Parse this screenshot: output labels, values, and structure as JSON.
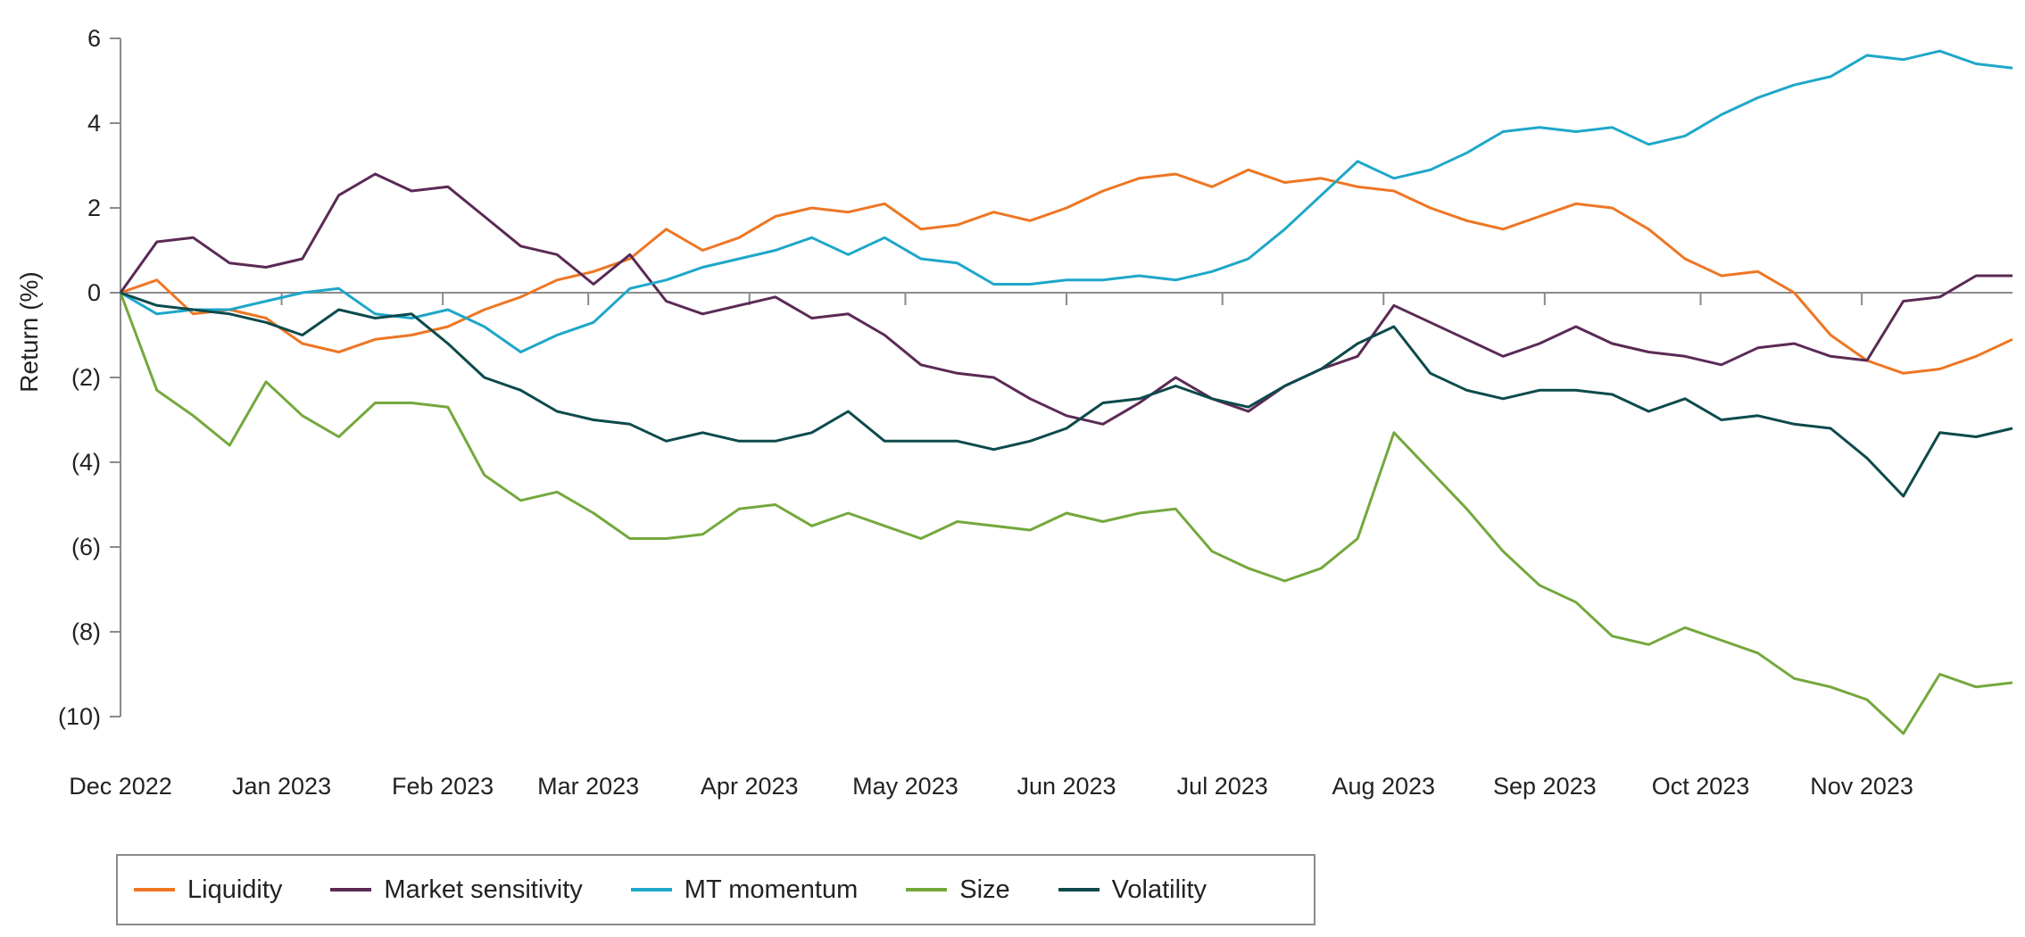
{
  "chart_data": {
    "type": "line",
    "title": "",
    "xlabel": "",
    "ylabel": "Return (%)",
    "ylim": [
      -10,
      6
    ],
    "yticks": [
      6,
      4,
      2,
      0,
      -2,
      -4,
      -6,
      -8,
      -10
    ],
    "ytick_labels": [
      "6",
      "4",
      "2",
      "0",
      "(2)",
      "(4)",
      "(6)",
      "(8)",
      "(10)"
    ],
    "x_range": [
      "2022-12-01",
      "2023-11-30"
    ],
    "x_tick_dates": [
      "2022-12-01",
      "2023-01-01",
      "2023-02-01",
      "2023-03-01",
      "2023-04-01",
      "2023-05-01",
      "2023-06-01",
      "2023-07-01",
      "2023-08-01",
      "2023-09-01",
      "2023-10-01",
      "2023-11-01"
    ],
    "x_tick_labels": [
      "Dec 2022",
      "Jan 2023",
      "Feb 2023",
      "Mar 2023",
      "Apr 2023",
      "May 2023",
      "Jun 2023",
      "Jul 2023",
      "Aug 2023",
      "Sep 2023",
      "Oct 2023",
      "Nov 2023"
    ],
    "grid": false,
    "legend_position": "bottom-left",
    "series": [
      {
        "name": "Liquidity",
        "color": "#ee7623",
        "x": [
          "2022-12-01",
          "2022-12-08",
          "2022-12-15",
          "2022-12-22",
          "2022-12-29",
          "2023-01-05",
          "2023-01-12",
          "2023-01-19",
          "2023-01-26",
          "2023-02-02",
          "2023-02-09",
          "2023-02-16",
          "2023-02-23",
          "2023-03-02",
          "2023-03-09",
          "2023-03-16",
          "2023-03-23",
          "2023-03-30",
          "2023-04-06",
          "2023-04-13",
          "2023-04-20",
          "2023-04-27",
          "2023-05-04",
          "2023-05-11",
          "2023-05-18",
          "2023-05-25",
          "2023-06-01",
          "2023-06-08",
          "2023-06-15",
          "2023-06-22",
          "2023-06-29",
          "2023-07-06",
          "2023-07-13",
          "2023-07-20",
          "2023-07-27",
          "2023-08-03",
          "2023-08-10",
          "2023-08-17",
          "2023-08-24",
          "2023-08-31",
          "2023-09-07",
          "2023-09-14",
          "2023-09-21",
          "2023-09-28",
          "2023-10-05",
          "2023-10-12",
          "2023-10-19",
          "2023-10-26",
          "2023-11-02",
          "2023-11-09",
          "2023-11-16",
          "2023-11-23",
          "2023-11-30"
        ],
        "values": [
          0,
          0.3,
          -0.5,
          -0.4,
          -0.6,
          -1.2,
          -1.4,
          -1.1,
          -1.0,
          -0.8,
          -0.4,
          -0.1,
          0.3,
          0.5,
          0.8,
          1.5,
          1.0,
          1.3,
          1.8,
          2.0,
          1.9,
          2.1,
          1.5,
          1.6,
          1.9,
          1.7,
          2.0,
          2.4,
          2.7,
          2.8,
          2.5,
          2.9,
          2.6,
          2.7,
          2.5,
          2.4,
          2.0,
          1.7,
          1.5,
          1.8,
          2.1,
          2.0,
          1.5,
          0.8,
          0.4,
          0.5,
          0.0,
          -1.0,
          -1.6,
          -1.9,
          -1.8,
          -1.5,
          -1.1
        ]
      },
      {
        "name": "Market sensitivity",
        "color": "#5b2a55",
        "x": [
          "2022-12-01",
          "2022-12-08",
          "2022-12-15",
          "2022-12-22",
          "2022-12-29",
          "2023-01-05",
          "2023-01-12",
          "2023-01-19",
          "2023-01-26",
          "2023-02-02",
          "2023-02-09",
          "2023-02-16",
          "2023-02-23",
          "2023-03-02",
          "2023-03-09",
          "2023-03-16",
          "2023-03-23",
          "2023-03-30",
          "2023-04-06",
          "2023-04-13",
          "2023-04-20",
          "2023-04-27",
          "2023-05-04",
          "2023-05-11",
          "2023-05-18",
          "2023-05-25",
          "2023-06-01",
          "2023-06-08",
          "2023-06-15",
          "2023-06-22",
          "2023-06-29",
          "2023-07-06",
          "2023-07-13",
          "2023-07-20",
          "2023-07-27",
          "2023-08-03",
          "2023-08-10",
          "2023-08-17",
          "2023-08-24",
          "2023-08-31",
          "2023-09-07",
          "2023-09-14",
          "2023-09-21",
          "2023-09-28",
          "2023-10-05",
          "2023-10-12",
          "2023-10-19",
          "2023-10-26",
          "2023-11-02",
          "2023-11-09",
          "2023-11-16",
          "2023-11-23",
          "2023-11-30"
        ],
        "values": [
          0,
          1.2,
          1.3,
          0.7,
          0.6,
          0.8,
          2.3,
          2.8,
          2.4,
          2.5,
          1.8,
          1.1,
          0.9,
          0.2,
          0.9,
          -0.2,
          -0.5,
          -0.3,
          -0.1,
          -0.6,
          -0.5,
          -1.0,
          -1.7,
          -1.9,
          -2.0,
          -2.5,
          -2.9,
          -3.1,
          -2.6,
          -2.0,
          -2.5,
          -2.8,
          -2.2,
          -1.8,
          -1.5,
          -0.3,
          -0.7,
          -1.1,
          -1.5,
          -1.2,
          -0.8,
          -1.2,
          -1.4,
          -1.5,
          -1.7,
          -1.3,
          -1.2,
          -1.5,
          -1.6,
          -0.2,
          -0.1,
          0.4,
          0.4
        ]
      },
      {
        "name": "MT momentum",
        "color": "#1ea7c9",
        "x": [
          "2022-12-01",
          "2022-12-08",
          "2022-12-15",
          "2022-12-22",
          "2022-12-29",
          "2023-01-05",
          "2023-01-12",
          "2023-01-19",
          "2023-01-26",
          "2023-02-02",
          "2023-02-09",
          "2023-02-16",
          "2023-02-23",
          "2023-03-02",
          "2023-03-09",
          "2023-03-16",
          "2023-03-23",
          "2023-03-30",
          "2023-04-06",
          "2023-04-13",
          "2023-04-20",
          "2023-04-27",
          "2023-05-04",
          "2023-05-11",
          "2023-05-18",
          "2023-05-25",
          "2023-06-01",
          "2023-06-08",
          "2023-06-15",
          "2023-06-22",
          "2023-06-29",
          "2023-07-06",
          "2023-07-13",
          "2023-07-20",
          "2023-07-27",
          "2023-08-03",
          "2023-08-10",
          "2023-08-17",
          "2023-08-24",
          "2023-08-31",
          "2023-09-07",
          "2023-09-14",
          "2023-09-21",
          "2023-09-28",
          "2023-10-05",
          "2023-10-12",
          "2023-10-19",
          "2023-10-26",
          "2023-11-02",
          "2023-11-09",
          "2023-11-16",
          "2023-11-23",
          "2023-11-30"
        ],
        "values": [
          0,
          -0.5,
          -0.4,
          -0.4,
          -0.2,
          0,
          0.1,
          -0.5,
          -0.6,
          -0.4,
          -0.8,
          -1.4,
          -1.0,
          -0.7,
          0.1,
          0.3,
          0.6,
          0.8,
          1.0,
          1.3,
          0.9,
          1.3,
          0.8,
          0.7,
          0.2,
          0.2,
          0.3,
          0.3,
          0.4,
          0.3,
          0.5,
          0.8,
          1.5,
          2.3,
          3.1,
          2.7,
          2.9,
          3.3,
          3.8,
          3.9,
          3.8,
          3.9,
          3.5,
          3.7,
          4.2,
          4.6,
          4.9,
          5.1,
          5.6,
          5.5,
          5.7,
          5.4,
          5.3
        ]
      },
      {
        "name": "Size",
        "color": "#74a83d",
        "x": [
          "2022-12-01",
          "2022-12-08",
          "2022-12-15",
          "2022-12-22",
          "2022-12-29",
          "2023-01-05",
          "2023-01-12",
          "2023-01-19",
          "2023-01-26",
          "2023-02-02",
          "2023-02-09",
          "2023-02-16",
          "2023-02-23",
          "2023-03-02",
          "2023-03-09",
          "2023-03-16",
          "2023-03-23",
          "2023-03-30",
          "2023-04-06",
          "2023-04-13",
          "2023-04-20",
          "2023-04-27",
          "2023-05-04",
          "2023-05-11",
          "2023-05-18",
          "2023-05-25",
          "2023-06-01",
          "2023-06-08",
          "2023-06-15",
          "2023-06-22",
          "2023-06-29",
          "2023-07-06",
          "2023-07-13",
          "2023-07-20",
          "2023-07-27",
          "2023-08-03",
          "2023-08-10",
          "2023-08-17",
          "2023-08-24",
          "2023-08-31",
          "2023-09-07",
          "2023-09-14",
          "2023-09-21",
          "2023-09-28",
          "2023-10-05",
          "2023-10-12",
          "2023-10-19",
          "2023-10-26",
          "2023-11-02",
          "2023-11-09",
          "2023-11-16",
          "2023-11-23",
          "2023-11-30"
        ],
        "values": [
          0,
          -2.3,
          -2.9,
          -3.6,
          -2.1,
          -2.9,
          -3.4,
          -2.6,
          -2.6,
          -2.7,
          -4.3,
          -4.9,
          -4.7,
          -5.2,
          -5.8,
          -5.8,
          -5.7,
          -5.1,
          -5.0,
          -5.5,
          -5.2,
          -5.5,
          -5.8,
          -5.4,
          -5.5,
          -5.6,
          -5.2,
          -5.4,
          -5.2,
          -5.1,
          -6.1,
          -6.5,
          -6.8,
          -6.5,
          -5.8,
          -3.3,
          -4.2,
          -5.1,
          -6.1,
          -6.9,
          -7.3,
          -8.1,
          -8.3,
          -7.9,
          -8.2,
          -8.5,
          -9.1,
          -9.3,
          -9.6,
          -10.4,
          -9.0,
          -9.3,
          -9.2
        ]
      },
      {
        "name": "Volatility",
        "color": "#0d4a4b",
        "x": [
          "2022-12-01",
          "2022-12-08",
          "2022-12-15",
          "2022-12-22",
          "2022-12-29",
          "2023-01-05",
          "2023-01-12",
          "2023-01-19",
          "2023-01-26",
          "2023-02-02",
          "2023-02-09",
          "2023-02-16",
          "2023-02-23",
          "2023-03-02",
          "2023-03-09",
          "2023-03-16",
          "2023-03-23",
          "2023-03-30",
          "2023-04-06",
          "2023-04-13",
          "2023-04-20",
          "2023-04-27",
          "2023-05-04",
          "2023-05-11",
          "2023-05-18",
          "2023-05-25",
          "2023-06-01",
          "2023-06-08",
          "2023-06-15",
          "2023-06-22",
          "2023-06-29",
          "2023-07-06",
          "2023-07-13",
          "2023-07-20",
          "2023-07-27",
          "2023-08-03",
          "2023-08-10",
          "2023-08-17",
          "2023-08-24",
          "2023-08-31",
          "2023-09-07",
          "2023-09-14",
          "2023-09-21",
          "2023-09-28",
          "2023-10-05",
          "2023-10-12",
          "2023-10-19",
          "2023-10-26",
          "2023-11-02",
          "2023-11-09",
          "2023-11-16",
          "2023-11-23",
          "2023-11-30"
        ],
        "values": [
          0,
          -0.3,
          -0.4,
          -0.5,
          -0.7,
          -1.0,
          -0.4,
          -0.6,
          -0.5,
          -1.2,
          -2.0,
          -2.3,
          -2.8,
          -3.0,
          -3.1,
          -3.5,
          -3.3,
          -3.5,
          -3.5,
          -3.3,
          -2.8,
          -3.5,
          -3.5,
          -3.5,
          -3.7,
          -3.5,
          -3.2,
          -2.6,
          -2.5,
          -2.2,
          -2.5,
          -2.7,
          -2.2,
          -1.8,
          -1.2,
          -0.8,
          -1.9,
          -2.3,
          -2.5,
          -2.3,
          -2.3,
          -2.4,
          -2.8,
          -2.5,
          -3.0,
          -2.9,
          -3.1,
          -3.2,
          -3.9,
          -4.8,
          -3.3,
          -3.4,
          -3.2
        ]
      }
    ]
  }
}
